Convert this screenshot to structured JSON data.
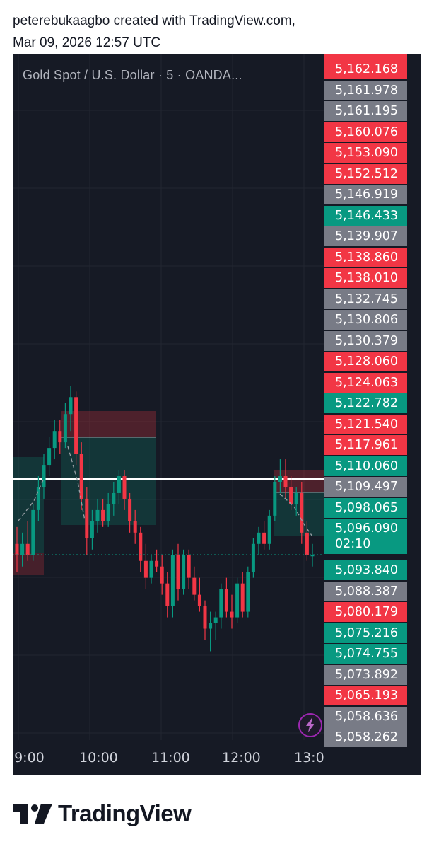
{
  "header": {
    "line1": "peterebukaagbo created with TradingView.com,",
    "line2": "Mar 09, 2026 12:57 UTC"
  },
  "symbol_title": "Gold Spot / U.S. Dollar · 5 · OANDA...",
  "colors": {
    "background": "#161a25",
    "up": "#089981",
    "down": "#f23645",
    "neutral_tag": "#787b86",
    "white_line": "#ffffff"
  },
  "price_tags": [
    {
      "label": "5,162.168",
      "color": "red"
    },
    {
      "label": "5,161.978",
      "color": "gray"
    },
    {
      "label": "5,161.195",
      "color": "gray"
    },
    {
      "label": "5,160.076",
      "color": "red"
    },
    {
      "label": "5,153.090",
      "color": "red"
    },
    {
      "label": "5,152.512",
      "color": "red"
    },
    {
      "label": "5,146.919",
      "color": "gray"
    },
    {
      "label": "5,146.433",
      "color": "green"
    },
    {
      "label": "5,139.907",
      "color": "gray"
    },
    {
      "label": "5,138.860",
      "color": "red"
    },
    {
      "label": "5,138.010",
      "color": "red"
    },
    {
      "label": "5,132.745",
      "color": "gray"
    },
    {
      "label": "5,130.806",
      "color": "gray"
    },
    {
      "label": "5,130.379",
      "color": "gray"
    },
    {
      "label": "5,128.060",
      "color": "red"
    },
    {
      "label": "5,124.063",
      "color": "red"
    },
    {
      "label": "5,122.782",
      "color": "green"
    },
    {
      "label": "5,121.540",
      "color": "red"
    },
    {
      "label": "5,117.961",
      "color": "red"
    },
    {
      "label": "5,110.060",
      "color": "green"
    },
    {
      "label": "5,109.497",
      "color": "gray"
    },
    {
      "label": "5,098.065",
      "color": "green"
    },
    {
      "label": "5,096.090",
      "color": "green"
    },
    {
      "label": "02:10",
      "color": "green"
    },
    {
      "label": "5,093.840",
      "color": "green"
    },
    {
      "label": "5,088.387",
      "color": "gray"
    },
    {
      "label": "5,080.179",
      "color": "red"
    },
    {
      "label": "5,075.216",
      "color": "green"
    },
    {
      "label": "5,074.755",
      "color": "green"
    },
    {
      "label": "5,073.892",
      "color": "gray"
    },
    {
      "label": "5,065.193",
      "color": "red"
    },
    {
      "label": "5,058.636",
      "color": "gray"
    },
    {
      "label": "5,058.262",
      "color": "gray"
    }
  ],
  "time_axis": [
    "09:00",
    "10:00",
    "11:00",
    "12:00",
    "13:0"
  ],
  "footer": {
    "brand": "TradingView"
  },
  "chart_data": {
    "type": "candlestick",
    "symbol": "Gold Spot / U.S. Dollar · 5 · OANDA...",
    "current_price": 5096.09,
    "countdown": "02:10",
    "horizontal_line": 5109.497,
    "ylim": [
      5058,
      5170
    ],
    "x_ticks": [
      "09:00",
      "10:00",
      "11:00",
      "12:00",
      "13:0"
    ],
    "candles": [
      {
        "o": 5098,
        "h": 5101,
        "l": 5093,
        "c": 5096
      },
      {
        "o": 5096,
        "h": 5100,
        "l": 5094,
        "c": 5098
      },
      {
        "o": 5098,
        "h": 5102,
        "l": 5095,
        "c": 5096
      },
      {
        "o": 5096,
        "h": 5105,
        "l": 5095,
        "c": 5104
      },
      {
        "o": 5104,
        "h": 5110,
        "l": 5102,
        "c": 5108
      },
      {
        "o": 5108,
        "h": 5114,
        "l": 5106,
        "c": 5112
      },
      {
        "o": 5112,
        "h": 5117,
        "l": 5110,
        "c": 5115
      },
      {
        "o": 5115,
        "h": 5120,
        "l": 5113,
        "c": 5118
      },
      {
        "o": 5118,
        "h": 5120,
        "l": 5114,
        "c": 5116
      },
      {
        "o": 5116,
        "h": 5123,
        "l": 5115,
        "c": 5121
      },
      {
        "o": 5121,
        "h": 5126,
        "l": 5118,
        "c": 5124
      },
      {
        "o": 5124,
        "h": 5125,
        "l": 5112,
        "c": 5114
      },
      {
        "o": 5114,
        "h": 5116,
        "l": 5104,
        "c": 5106
      },
      {
        "o": 5106,
        "h": 5108,
        "l": 5096,
        "c": 5099
      },
      {
        "o": 5099,
        "h": 5104,
        "l": 5097,
        "c": 5102
      },
      {
        "o": 5102,
        "h": 5106,
        "l": 5100,
        "c": 5104
      },
      {
        "o": 5104,
        "h": 5106,
        "l": 5101,
        "c": 5102
      },
      {
        "o": 5102,
        "h": 5107,
        "l": 5101,
        "c": 5105
      },
      {
        "o": 5105,
        "h": 5109,
        "l": 5103,
        "c": 5107
      },
      {
        "o": 5107,
        "h": 5111,
        "l": 5105,
        "c": 5110
      },
      {
        "o": 5110,
        "h": 5111,
        "l": 5104,
        "c": 5106
      },
      {
        "o": 5106,
        "h": 5107,
        "l": 5100,
        "c": 5102
      },
      {
        "o": 5102,
        "h": 5104,
        "l": 5098,
        "c": 5100
      },
      {
        "o": 5100,
        "h": 5101,
        "l": 5093,
        "c": 5095
      },
      {
        "o": 5095,
        "h": 5098,
        "l": 5090,
        "c": 5092
      },
      {
        "o": 5092,
        "h": 5096,
        "l": 5091,
        "c": 5095
      },
      {
        "o": 5095,
        "h": 5097,
        "l": 5093,
        "c": 5094
      },
      {
        "o": 5094,
        "h": 5096,
        "l": 5089,
        "c": 5091
      },
      {
        "o": 5091,
        "h": 5093,
        "l": 5085,
        "c": 5087
      },
      {
        "o": 5087,
        "h": 5097,
        "l": 5085,
        "c": 5096
      },
      {
        "o": 5096,
        "h": 5098,
        "l": 5088,
        "c": 5090
      },
      {
        "o": 5090,
        "h": 5097,
        "l": 5089,
        "c": 5096
      },
      {
        "o": 5096,
        "h": 5097,
        "l": 5090,
        "c": 5092
      },
      {
        "o": 5092,
        "h": 5094,
        "l": 5088,
        "c": 5089
      },
      {
        "o": 5089,
        "h": 5092,
        "l": 5086,
        "c": 5087
      },
      {
        "o": 5087,
        "h": 5088,
        "l": 5081,
        "c": 5083
      },
      {
        "o": 5083,
        "h": 5086,
        "l": 5079,
        "c": 5084
      },
      {
        "o": 5084,
        "h": 5086,
        "l": 5081,
        "c": 5085
      },
      {
        "o": 5085,
        "h": 5091,
        "l": 5083,
        "c": 5090
      },
      {
        "o": 5090,
        "h": 5092,
        "l": 5085,
        "c": 5086
      },
      {
        "o": 5086,
        "h": 5089,
        "l": 5083,
        "c": 5085
      },
      {
        "o": 5085,
        "h": 5092,
        "l": 5084,
        "c": 5091
      },
      {
        "o": 5091,
        "h": 5093,
        "l": 5085,
        "c": 5086
      },
      {
        "o": 5086,
        "h": 5094,
        "l": 5085,
        "c": 5093
      },
      {
        "o": 5093,
        "h": 5099,
        "l": 5092,
        "c": 5098
      },
      {
        "o": 5098,
        "h": 5101,
        "l": 5096,
        "c": 5100
      },
      {
        "o": 5100,
        "h": 5102,
        "l": 5097,
        "c": 5098
      },
      {
        "o": 5098,
        "h": 5104,
        "l": 5097,
        "c": 5103
      },
      {
        "o": 5103,
        "h": 5110,
        "l": 5102,
        "c": 5109
      },
      {
        "o": 5109,
        "h": 5113,
        "l": 5107,
        "c": 5110
      },
      {
        "o": 5110,
        "h": 5113,
        "l": 5106,
        "c": 5108
      },
      {
        "o": 5108,
        "h": 5110,
        "l": 5104,
        "c": 5105
      },
      {
        "o": 5105,
        "h": 5108,
        "l": 5103,
        "c": 5107
      },
      {
        "o": 5107,
        "h": 5109,
        "l": 5098,
        "c": 5100
      },
      {
        "o": 5100,
        "h": 5102,
        "l": 5095,
        "c": 5096
      },
      {
        "o": 5096,
        "h": 5098,
        "l": 5094,
        "c": 5096
      }
    ]
  }
}
